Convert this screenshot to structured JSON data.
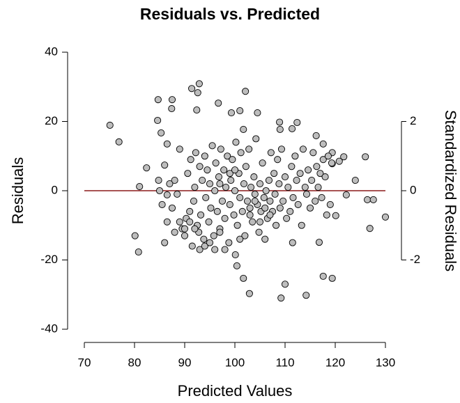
{
  "chart_data": {
    "type": "scatter",
    "title": "Residuals vs. Predicted",
    "x_label": "Predicted Values",
    "y_label": "Residuals",
    "y2_label": "Standardized Residuals",
    "xlim": [
      70,
      130
    ],
    "xticks": [
      70,
      80,
      90,
      100,
      110,
      120,
      130
    ],
    "ylim": [
      -40,
      40
    ],
    "yticks": [
      -40,
      -20,
      0,
      20,
      40
    ],
    "y2lim": [
      -4,
      4
    ],
    "y2ticks": [
      -2,
      0,
      2
    ],
    "reference_line": 0,
    "reference_color": "#8b1a1a",
    "color": "#bdbdbd",
    "x": [
      75.1,
      76.9,
      82.4,
      81,
      80.1,
      80.8,
      84.6,
      84.7,
      87.5,
      87.4,
      85.3,
      86.5,
      86,
      86.5,
      86,
      91.4,
      92.9,
      92.6,
      92.4,
      96.7,
      99.3,
      101,
      101.7,
      102.1,
      104.5,
      109,
      108.9,
      111.4,
      112.4,
      111.5,
      100.4,
      100.1,
      101.7,
      102.9,
      109.2,
      110,
      114.2,
      117.6,
      119.4,
      116.8,
      120.1,
      122.2,
      124,
      126,
      126.4,
      127.6,
      126.9,
      130,
      121.7,
      116.2,
      117.6,
      119.4,
      120.8,
      119.4,
      88,
      88.5,
      89,
      89.5,
      90,
      90.3,
      90.6,
      91,
      91.2,
      91.5,
      91.8,
      92,
      92.2,
      92.5,
      92.8,
      93,
      93.2,
      93.5,
      93.8,
      94,
      94.2,
      94.5,
      94.8,
      95,
      95.2,
      95.5,
      95.8,
      96,
      96.2,
      96.5,
      96.8,
      97,
      97.2,
      97.5,
      97.8,
      98,
      98.2,
      98.5,
      98.8,
      99,
      99.2,
      99.5,
      99.8,
      100,
      100.2,
      100.5,
      100.8,
      101,
      101.2,
      101.5,
      101.8,
      102,
      102.2,
      102.5,
      102.8,
      103,
      103.2,
      103.5,
      103.8,
      104,
      104.2,
      104.5,
      104.8,
      105,
      105.2,
      105.5,
      105.8,
      106,
      106.2,
      106.5,
      106.8,
      107,
      107.2,
      107.5,
      107.8,
      108,
      108.2,
      108.5,
      108.8,
      109,
      109.3,
      109.6,
      110,
      110.3,
      110.6,
      111,
      111.3,
      111.6,
      112,
      112.3,
      112.6,
      113,
      113.3,
      113.6,
      114,
      114.3,
      114.6,
      115,
      115.3,
      115.6,
      116,
      116.3,
      116.6,
      117,
      117.3,
      117.6,
      118,
      118.3,
      118.6,
      119,
      119.3,
      86.5,
      87,
      87.5,
      88,
      85,
      85.5,
      84.8,
      89,
      90,
      91,
      92,
      93,
      94,
      95,
      96,
      97,
      98,
      99,
      97,
      103,
      104,
      105,
      106,
      107,
      101,
      100
    ],
    "values": [
      18.9,
      14.1,
      6.6,
      1.2,
      -13,
      -17.7,
      20.3,
      26.3,
      26.3,
      23.7,
      16.7,
      13.5,
      7.4,
      -1.2,
      -15,
      29.5,
      30.9,
      28.3,
      23.3,
      25.3,
      22.5,
      23.1,
      17.7,
      28.7,
      22.5,
      17.7,
      19.8,
      17.9,
      19.7,
      -15,
      -21.7,
      -18.5,
      -25.3,
      -29.7,
      -31,
      -27,
      -30.2,
      -24.7,
      -25.3,
      -14.9,
      -7.2,
      -1.2,
      3,
      9.8,
      -2.6,
      -2.6,
      -10.9,
      -7.6,
      9.8,
      15.9,
      13.5,
      11,
      8.5,
      7.8,
      3,
      -1,
      -9,
      -11,
      -13,
      -8,
      5,
      -6,
      9,
      -16,
      -3,
      1,
      11,
      -10,
      -12,
      7,
      -7,
      3,
      -14,
      10,
      -2,
      6,
      -9,
      2,
      -5,
      13,
      -13,
      0,
      8,
      -6,
      4,
      -11,
      12,
      -3,
      6,
      -8,
      1,
      10,
      -15,
      -4,
      3,
      9,
      -7,
      0,
      14,
      -10,
      5,
      -2,
      11,
      -6,
      2,
      -13,
      7,
      -3,
      12,
      -5,
      1,
      -9,
      4,
      -1,
      15,
      -4,
      -12,
      2,
      -6,
      8,
      -2,
      -5,
      0,
      -8,
      3,
      -3,
      11,
      -6,
      5,
      -1,
      -10,
      9,
      2,
      -5,
      12,
      -3,
      4,
      -8,
      1,
      -6,
      7,
      -2,
      10,
      3,
      -4,
      5,
      -10,
      12,
      1,
      -1,
      6,
      -5,
      3,
      11,
      -3,
      7,
      1,
      5,
      -2,
      9,
      4,
      -7,
      10,
      -4,
      8,
      -9,
      2,
      -5,
      -12,
      0,
      -4,
      3,
      12,
      -11,
      -9,
      -11,
      -17,
      -16,
      -15,
      -17,
      -12,
      -17,
      5,
      2,
      -7,
      -3,
      -9,
      -14,
      -7,
      -14,
      6
    ]
  }
}
